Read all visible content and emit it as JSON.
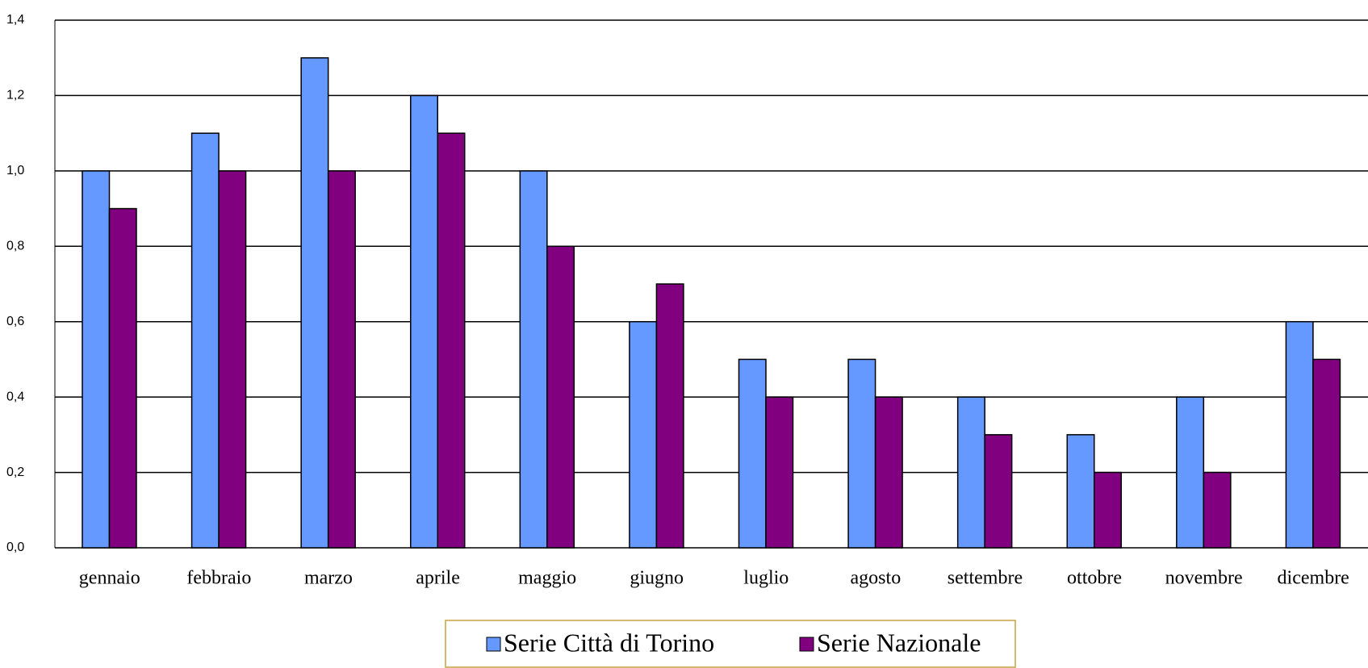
{
  "chart_data": {
    "type": "bar",
    "categories": [
      "gennaio",
      "febbraio",
      "marzo",
      "aprile",
      "maggio",
      "giugno",
      "luglio",
      "agosto",
      "settembre",
      "ottobre",
      "novembre",
      "dicembre"
    ],
    "series": [
      {
        "name": "Serie Città di Torino",
        "color": "#6699ff",
        "values": [
          1.0,
          1.1,
          1.3,
          1.2,
          1.0,
          0.6,
          0.5,
          0.5,
          0.4,
          0.3,
          0.4,
          0.6
        ]
      },
      {
        "name": "Serie Nazionale",
        "color": "#800080",
        "values": [
          0.9,
          1.0,
          1.0,
          1.1,
          0.8,
          0.7,
          0.4,
          0.4,
          0.3,
          0.2,
          0.2,
          0.5
        ]
      }
    ],
    "ylim": [
      0,
      1.4
    ],
    "yticks": [
      {
        "value": 0,
        "label": "0,0"
      },
      {
        "value": 0.2,
        "label": "0,2"
      },
      {
        "value": 0.4,
        "label": "0,4"
      },
      {
        "value": 0.6,
        "label": "0,6"
      },
      {
        "value": 0.8,
        "label": "0,8"
      },
      {
        "value": 1.0,
        "label": "1,0"
      },
      {
        "value": 1.2,
        "label": "1,2"
      },
      {
        "value": 1.4,
        "label": "1,4"
      }
    ],
    "grid": true
  }
}
